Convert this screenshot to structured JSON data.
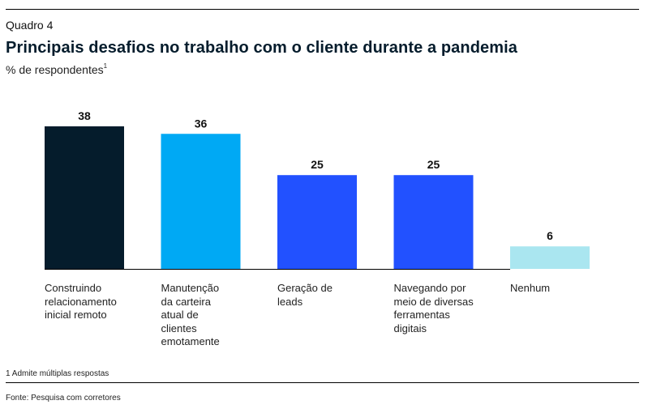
{
  "header": {
    "eyebrow": "Quadro 4",
    "title": "Principais desafios no trabalho com o cliente durante a pandemia",
    "subtitle": "% de respondentes",
    "subtitle_footnote_mark": "1"
  },
  "chart_data": {
    "type": "bar",
    "title": "Principais desafios no trabalho com o cliente durante a pandemia",
    "subtitle": "% de respondentes",
    "xlabel": "",
    "ylabel": "% de respondentes",
    "ylim": [
      0,
      38
    ],
    "grid": false,
    "legend": "none",
    "categories": [
      "Construindo relacionamento inicial remoto",
      "Manutenção da carteira atual de clientes emotamente",
      "Geração de leads",
      "Navegando por meio de diversas ferramentas digitais",
      "Nenhum"
    ],
    "category_lines": [
      [
        "Construindo",
        "relacionamento",
        "inicial remoto"
      ],
      [
        "Manutenção",
        "da carteira",
        "atual de",
        "clientes",
        "emotamente"
      ],
      [
        "Geração de",
        "leads"
      ],
      [
        "Navegando por",
        "meio de diversas",
        "ferramentas",
        "digitais"
      ],
      [
        "Nenhum"
      ]
    ],
    "values": [
      38,
      36,
      25,
      25,
      6
    ],
    "data_labels": [
      "38",
      "36",
      "25",
      "25",
      "6"
    ],
    "colors": [
      "#051c2c",
      "#00a9f4",
      "#2251ff",
      "#2251ff",
      "#aae6f0"
    ]
  },
  "footer": {
    "footnote": "1 Admite múltiplas respostas",
    "source": "Fonte: Pesquisa com corretores"
  }
}
